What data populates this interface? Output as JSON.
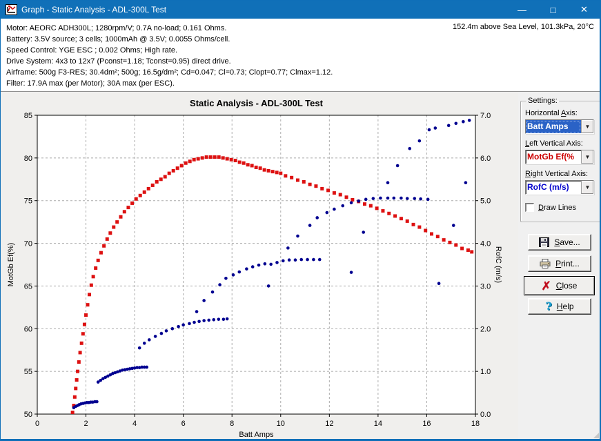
{
  "window": {
    "title": "Graph - Static Analysis - ADL-300L Test",
    "controls": {
      "minimize": "—",
      "maximize": "□",
      "close": "✕"
    }
  },
  "info": {
    "lines": [
      "Motor: AEORC ADH300L; 1280rpm/V; 0.7A no-load; 0.161 Ohms.",
      "Battery: 3.5V source; 3 cells; 1000mAh @ 3.5V; 0.0055 Ohms/cell.",
      "Speed Control: YGE ESC ; 0.002 Ohms; High rate.",
      "Drive System: 4x3 to 12x7 (Pconst=1.18; Tconst=0.95) direct drive.",
      "Airframe: 500g F3-RES; 30.4dm²; 500g; 16.5g/dm²; Cd=0.047; Cl=0.73; Clopt=0.77; Clmax=1.12.",
      "Filter: 17.9A max (per Motor); 30A max (per ESC)."
    ],
    "conditions": "152.4m above Sea Level, 101.3kPa, 20°C"
  },
  "settings": {
    "title": "Settings:",
    "horizontal_axis": {
      "label": "Horizontal Axis:",
      "accel": 11,
      "value": "Batt Amps"
    },
    "left_axis": {
      "label": "Left Vertical Axis:",
      "accel": 0,
      "value": "MotGb Ef(%",
      "color": "#cc0000"
    },
    "right_axis": {
      "label": "Right Vertical Axis:",
      "accel": 0,
      "value": "RofC (m/s)",
      "color": "#0000cc"
    },
    "draw_lines": {
      "label": "Draw Lines",
      "accel": 0,
      "checked": false
    },
    "dropdown_glyph": "▼"
  },
  "buttons": {
    "save": {
      "label": "Save...",
      "accel": 0
    },
    "print": {
      "label": "Print...",
      "accel": 0
    },
    "close": {
      "label": "Close",
      "accel": 0
    },
    "help": {
      "label": "Help",
      "accel": 0
    }
  },
  "chart_data": {
    "type": "scatter",
    "title": "Static Analysis - ADL-300L Test",
    "xlabel": "Batt Amps",
    "xlim": [
      0,
      18
    ],
    "xticks": [
      0,
      2,
      4,
      6,
      8,
      10,
      12,
      14,
      16,
      18
    ],
    "left_ylabel": "MotGb Ef(%)",
    "left_ylim": [
      50,
      85
    ],
    "left_yticks": [
      50,
      55,
      60,
      65,
      70,
      75,
      80,
      85
    ],
    "right_ylabel": "RofC (m/s)",
    "right_ylim": [
      0,
      7
    ],
    "right_yticks": [
      0,
      1,
      2,
      3,
      4,
      5,
      6,
      7
    ],
    "grid": "dashed",
    "legend": "none",
    "series": [
      {
        "name": "MotGb Ef(%)",
        "axis": "left",
        "color": "#dd1111",
        "marker": "square",
        "points": [
          [
            1.45,
            50.2
          ],
          [
            1.5,
            51.0
          ],
          [
            1.54,
            52.0
          ],
          [
            1.58,
            53.0
          ],
          [
            1.62,
            54.0
          ],
          [
            1.66,
            55.0
          ],
          [
            1.71,
            56.1
          ],
          [
            1.76,
            57.2
          ],
          [
            1.82,
            58.3
          ],
          [
            1.88,
            59.4
          ],
          [
            1.94,
            60.5
          ],
          [
            2.0,
            61.6
          ],
          [
            2.07,
            62.8
          ],
          [
            2.14,
            64.0
          ],
          [
            2.22,
            65.1
          ],
          [
            2.3,
            66.1
          ],
          [
            2.4,
            67.1
          ],
          [
            2.5,
            68.0
          ],
          [
            2.62,
            68.9
          ],
          [
            2.74,
            69.7
          ],
          [
            2.87,
            70.5
          ],
          [
            3.0,
            71.2
          ],
          [
            3.14,
            71.9
          ],
          [
            3.28,
            72.5
          ],
          [
            3.43,
            73.1
          ],
          [
            3.58,
            73.7
          ],
          [
            3.74,
            74.2
          ],
          [
            3.9,
            74.7
          ],
          [
            4.06,
            75.2
          ],
          [
            4.23,
            75.6
          ],
          [
            4.4,
            76.0
          ],
          [
            4.57,
            76.4
          ],
          [
            4.74,
            76.8
          ],
          [
            4.91,
            77.2
          ],
          [
            5.08,
            77.5
          ],
          [
            5.25,
            77.8
          ],
          [
            5.42,
            78.2
          ],
          [
            5.59,
            78.5
          ],
          [
            5.76,
            78.8
          ],
          [
            5.93,
            79.1
          ],
          [
            6.1,
            79.4
          ],
          [
            6.27,
            79.6
          ],
          [
            6.44,
            79.8
          ],
          [
            6.61,
            79.9
          ],
          [
            6.78,
            80.0
          ],
          [
            6.95,
            80.1
          ],
          [
            7.12,
            80.1
          ],
          [
            7.29,
            80.1
          ],
          [
            7.46,
            80.1
          ],
          [
            7.63,
            80.0
          ],
          [
            7.8,
            79.9
          ],
          [
            7.97,
            79.8
          ],
          [
            8.14,
            79.7
          ],
          [
            8.31,
            79.5
          ],
          [
            8.48,
            79.4
          ],
          [
            8.65,
            79.2
          ],
          [
            8.82,
            79.1
          ],
          [
            8.99,
            78.9
          ],
          [
            9.16,
            78.8
          ],
          [
            9.33,
            78.6
          ],
          [
            9.5,
            78.5
          ],
          [
            9.67,
            78.4
          ],
          [
            9.84,
            78.3
          ],
          [
            10.0,
            78.2
          ],
          [
            10.2,
            77.9
          ],
          [
            10.45,
            77.7
          ],
          [
            10.7,
            77.4
          ],
          [
            10.95,
            77.2
          ],
          [
            11.2,
            76.9
          ],
          [
            11.45,
            76.7
          ],
          [
            11.7,
            76.4
          ],
          [
            11.95,
            76.2
          ],
          [
            12.2,
            75.9
          ],
          [
            12.45,
            75.7
          ],
          [
            12.7,
            75.4
          ],
          [
            12.95,
            75.1
          ],
          [
            13.2,
            74.9
          ],
          [
            13.45,
            74.6
          ],
          [
            13.7,
            74.4
          ],
          [
            13.95,
            74.1
          ],
          [
            14.2,
            73.8
          ],
          [
            14.45,
            73.5
          ],
          [
            14.7,
            73.2
          ],
          [
            14.95,
            72.9
          ],
          [
            15.2,
            72.6
          ],
          [
            15.45,
            72.2
          ],
          [
            15.7,
            71.9
          ],
          [
            15.95,
            71.5
          ],
          [
            16.2,
            71.1
          ],
          [
            16.45,
            70.8
          ],
          [
            16.7,
            70.4
          ],
          [
            16.95,
            70.1
          ],
          [
            17.2,
            69.8
          ],
          [
            17.45,
            69.4
          ],
          [
            17.7,
            69.2
          ],
          [
            17.85,
            69.0
          ]
        ]
      },
      {
        "name": "RofC (m/s)",
        "axis": "right",
        "color": "#000090",
        "marker": "circle",
        "points": [
          [
            1.5,
            0.15
          ],
          [
            1.58,
            0.18
          ],
          [
            1.65,
            0.2
          ],
          [
            1.72,
            0.22
          ],
          [
            1.8,
            0.24
          ],
          [
            1.88,
            0.25
          ],
          [
            1.96,
            0.26
          ],
          [
            2.04,
            0.27
          ],
          [
            2.12,
            0.27
          ],
          [
            2.2,
            0.28
          ],
          [
            2.28,
            0.28
          ],
          [
            2.37,
            0.29
          ],
          [
            2.45,
            0.29
          ],
          [
            2.5,
            0.75
          ],
          [
            2.6,
            0.79
          ],
          [
            2.7,
            0.83
          ],
          [
            2.8,
            0.86
          ],
          [
            2.9,
            0.89
          ],
          [
            3.0,
            0.92
          ],
          [
            3.1,
            0.95
          ],
          [
            3.2,
            0.97
          ],
          [
            3.3,
            0.99
          ],
          [
            3.4,
            1.01
          ],
          [
            3.5,
            1.03
          ],
          [
            3.6,
            1.04
          ],
          [
            3.7,
            1.05
          ],
          [
            3.8,
            1.06
          ],
          [
            3.9,
            1.07
          ],
          [
            4.0,
            1.08
          ],
          [
            4.1,
            1.09
          ],
          [
            4.2,
            1.09
          ],
          [
            4.3,
            1.1
          ],
          [
            4.4,
            1.1
          ],
          [
            4.5,
            1.1
          ],
          [
            4.2,
            1.55
          ],
          [
            4.4,
            1.66
          ],
          [
            4.6,
            1.74
          ],
          [
            4.85,
            1.82
          ],
          [
            5.1,
            1.89
          ],
          [
            5.3,
            1.95
          ],
          [
            5.55,
            2.0
          ],
          [
            5.8,
            2.05
          ],
          [
            6.0,
            2.09
          ],
          [
            6.25,
            2.12
          ],
          [
            6.45,
            2.15
          ],
          [
            6.65,
            2.17
          ],
          [
            6.85,
            2.19
          ],
          [
            7.05,
            2.2
          ],
          [
            7.25,
            2.21
          ],
          [
            7.45,
            2.22
          ],
          [
            7.65,
            2.22
          ],
          [
            7.8,
            2.23
          ],
          [
            6.55,
            2.4
          ],
          [
            6.85,
            2.66
          ],
          [
            7.2,
            2.86
          ],
          [
            7.5,
            3.03
          ],
          [
            7.75,
            3.18
          ],
          [
            8.05,
            3.26
          ],
          [
            8.3,
            3.33
          ],
          [
            8.6,
            3.4
          ],
          [
            8.85,
            3.45
          ],
          [
            9.1,
            3.49
          ],
          [
            9.35,
            3.52
          ],
          [
            9.6,
            3.51
          ],
          [
            9.85,
            3.55
          ],
          [
            10.1,
            3.59
          ],
          [
            10.35,
            3.61
          ],
          [
            10.6,
            3.61
          ],
          [
            10.85,
            3.62
          ],
          [
            11.1,
            3.62
          ],
          [
            11.35,
            3.62
          ],
          [
            11.6,
            3.62
          ],
          [
            9.5,
            3.0
          ],
          [
            12.9,
            3.32
          ],
          [
            13.4,
            4.26
          ],
          [
            16.5,
            3.06
          ],
          [
            17.1,
            4.42
          ],
          [
            17.6,
            5.42
          ],
          [
            10.3,
            3.89
          ],
          [
            10.7,
            4.17
          ],
          [
            11.2,
            4.42
          ],
          [
            11.5,
            4.6
          ],
          [
            11.9,
            4.72
          ],
          [
            12.2,
            4.8
          ],
          [
            12.55,
            4.88
          ],
          [
            12.9,
            4.95
          ],
          [
            13.2,
            4.99
          ],
          [
            13.5,
            5.03
          ],
          [
            13.8,
            5.05
          ],
          [
            14.1,
            5.06
          ],
          [
            14.4,
            5.06
          ],
          [
            14.65,
            5.06
          ],
          [
            14.95,
            5.06
          ],
          [
            15.2,
            5.05
          ],
          [
            15.5,
            5.05
          ],
          [
            15.75,
            5.04
          ],
          [
            16.05,
            5.03
          ],
          [
            14.4,
            5.42
          ],
          [
            14.8,
            5.82
          ],
          [
            15.3,
            6.22
          ],
          [
            15.7,
            6.4
          ],
          [
            16.1,
            6.66
          ],
          [
            16.35,
            6.7
          ],
          [
            16.9,
            6.76
          ],
          [
            17.2,
            6.81
          ],
          [
            17.5,
            6.85
          ],
          [
            17.75,
            6.88
          ]
        ]
      }
    ]
  }
}
